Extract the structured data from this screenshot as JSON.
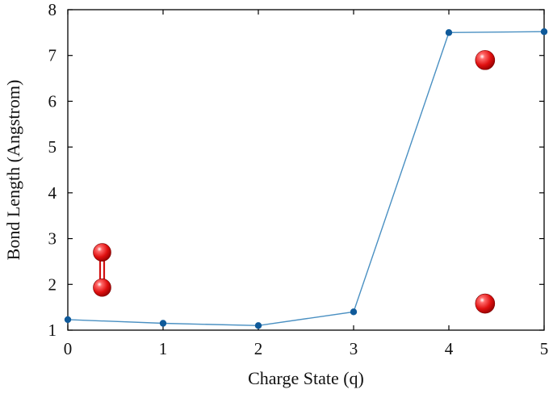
{
  "chart_data": {
    "type": "line",
    "xlabel": "Charge State (q)",
    "ylabel": "Bond Length (Angstrom)",
    "xlim": [
      0,
      5
    ],
    "ylim": [
      1,
      8
    ],
    "xticks": [
      0,
      1,
      2,
      3,
      4,
      5
    ],
    "yticks": [
      1,
      2,
      3,
      4,
      5,
      6,
      7,
      8
    ],
    "grid": false,
    "legend": "none",
    "series": [
      {
        "x": [
          0,
          1,
          2,
          3,
          4,
          5
        ],
        "y": [
          1.23,
          1.15,
          1.1,
          1.4,
          7.5,
          7.52
        ],
        "color": "#0f5a9a",
        "line_color": "#4a90c2"
      }
    ],
    "annotations": [
      {
        "kind": "bonded-molecule-icon",
        "atoms": [
          {
            "x": 0.36,
            "y": 2.7
          },
          {
            "x": 0.36,
            "y": 1.93
          }
        ],
        "color": "#e01010"
      },
      {
        "kind": "separated-atom-icon",
        "x": 4.38,
        "y": 6.9,
        "color": "#e01010"
      },
      {
        "kind": "separated-atom-icon",
        "x": 4.38,
        "y": 1.58,
        "color": "#e01010"
      }
    ]
  }
}
